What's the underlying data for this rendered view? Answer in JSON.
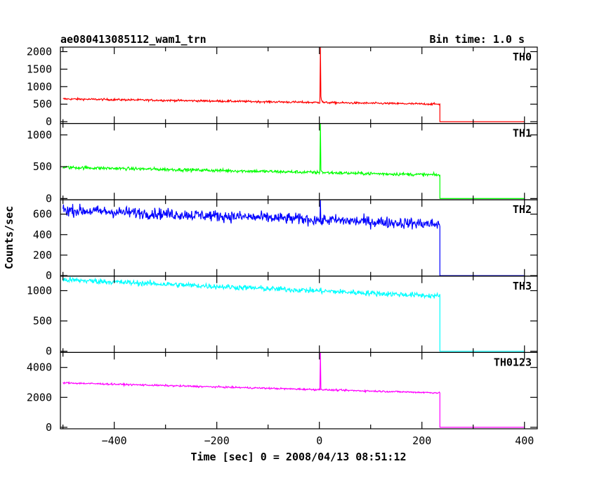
{
  "chart_data": {
    "type": "line",
    "title": "ae080413085112_wam1_trn",
    "bin_time_label": "Bin time: 1.0 s",
    "xlabel": "Time [sec] 0 = 2008/04/13 08:51:12",
    "ylabel": "Counts/sec",
    "xlim": [
      -505,
      425
    ],
    "x_ticks": [
      -400,
      -200,
      0,
      200,
      400
    ],
    "x_tick_labels": [
      "−400",
      "−200",
      "0",
      "200",
      "400"
    ],
    "shared_x_axis": true,
    "grid": false,
    "panels": [
      {
        "name": "TH0",
        "color": "#ff0000",
        "ylim": [
          -50,
          2130
        ],
        "y_ticks": [
          0,
          500,
          1000,
          1500,
          2000
        ],
        "profile": {
          "x_start": -500,
          "x_end": 235,
          "baseline_start": 650,
          "baseline_end": 500,
          "noise": 28,
          "spike_x": 2,
          "spike_peak": 2150,
          "spike_decay_to": 800,
          "after_value": 0,
          "x_stop": 400
        }
      },
      {
        "name": "TH1",
        "color": "#00ff00",
        "ylim": [
          -20,
          1180
        ],
        "y_ticks": [
          0,
          500,
          1000
        ],
        "profile": {
          "x_start": -500,
          "x_end": 235,
          "baseline_start": 490,
          "baseline_end": 370,
          "noise": 25,
          "spike_x": 2,
          "spike_peak": 1200,
          "spike_decay_to": 500,
          "after_value": 0,
          "x_stop": 400
        }
      },
      {
        "name": "TH2",
        "color": "#0000ff",
        "ylim": [
          -5,
          740
        ],
        "y_ticks": [
          0,
          200,
          400,
          600
        ],
        "profile": {
          "x_start": -500,
          "x_end": 235,
          "baseline_start": 640,
          "baseline_end": 500,
          "noise": 55,
          "spike_x": 2,
          "spike_peak": 760,
          "spike_decay_to": 560,
          "after_value": 0,
          "x_stop": 400
        }
      },
      {
        "name": "TH3",
        "color": "#00ffff",
        "ylim": [
          -20,
          1240
        ],
        "y_ticks": [
          0,
          500,
          1000
        ],
        "profile": {
          "x_start": -500,
          "x_end": 235,
          "baseline_start": 1180,
          "baseline_end": 910,
          "noise": 45,
          "spike_x": null,
          "spike_peak": null,
          "spike_decay_to": null,
          "after_value": 0,
          "x_stop": 400
        }
      },
      {
        "name": "TH0123",
        "color": "#ff00ff",
        "ylim": [
          -100,
          5000
        ],
        "y_ticks": [
          0,
          2000,
          4000
        ],
        "profile": {
          "x_start": -500,
          "x_end": 235,
          "baseline_start": 2970,
          "baseline_end": 2300,
          "noise": 55,
          "spike_x": 2,
          "spike_peak": 5000,
          "spike_decay_to": 2800,
          "after_value": 0,
          "x_stop": 400
        }
      }
    ]
  }
}
